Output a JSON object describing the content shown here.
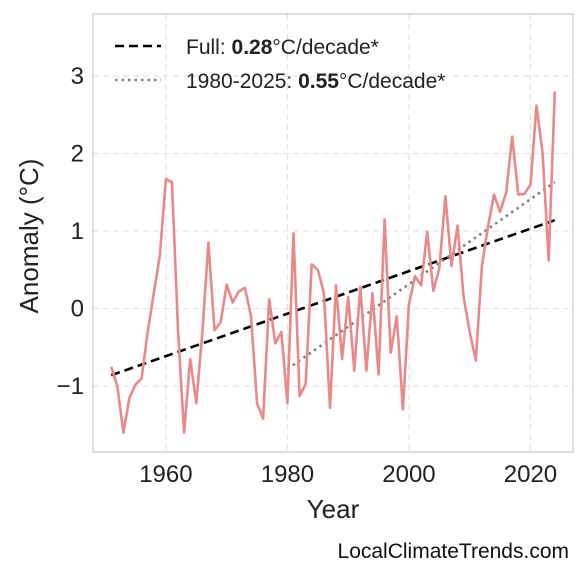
{
  "credit": "LocalClimateTrends.com",
  "chart_data": {
    "type": "line",
    "xlabel": "Year",
    "ylabel": "Anomaly (°C)",
    "xlim": [
      1948,
      2027
    ],
    "ylim": [
      -1.85,
      3.8
    ],
    "xticks": [
      1960,
      1980,
      2000,
      2020
    ],
    "yticks": [
      -1,
      0,
      1,
      2,
      3
    ],
    "ytick_labels": [
      "−1",
      "0",
      "1",
      "2",
      "3"
    ],
    "grid": true,
    "legend_position": "top-left",
    "legend": [
      {
        "label_prefix": "Full: ",
        "value": "0.28",
        "label_suffix": "°C/decade*",
        "style": "dashed",
        "color": "#000000"
      },
      {
        "label_prefix": "1980-2025: ",
        "value": "0.55",
        "label_suffix": "°C/decade*",
        "style": "dotted",
        "color": "#808080"
      }
    ],
    "series": [
      {
        "color": "#e8898b",
        "x": [
          1951,
          1952,
          1953,
          1954,
          1955,
          1956,
          1957,
          1958,
          1959,
          1960,
          1961,
          1962,
          1963,
          1964,
          1965,
          1966,
          1967,
          1968,
          1969,
          1970,
          1971,
          1972,
          1973,
          1974,
          1975,
          1976,
          1977,
          1978,
          1979,
          1980,
          1981,
          1982,
          1983,
          1984,
          1985,
          1986,
          1987,
          1988,
          1989,
          1990,
          1991,
          1992,
          1993,
          1994,
          1995,
          1996,
          1997,
          1998,
          1999,
          2000,
          2001,
          2002,
          2003,
          2004,
          2005,
          2006,
          2007,
          2008,
          2009,
          2010,
          2011,
          2012,
          2013,
          2014,
          2015,
          2016,
          2017,
          2018,
          2019,
          2020,
          2021,
          2022,
          2023,
          2024
        ],
        "y": [
          -0.75,
          -1.0,
          -1.6,
          -1.15,
          -0.98,
          -0.9,
          -0.3,
          0.2,
          0.68,
          1.67,
          1.63,
          -0.3,
          -1.6,
          -0.65,
          -1.22,
          -0.3,
          0.85,
          -0.28,
          -0.18,
          0.31,
          0.08,
          0.22,
          0.27,
          -0.1,
          -1.22,
          -1.42,
          0.12,
          -0.45,
          -0.3,
          -1.22,
          0.97,
          -1.13,
          -0.97,
          0.57,
          0.5,
          0.2,
          -1.28,
          0.3,
          -0.65,
          0.15,
          -0.8,
          0.28,
          -0.8,
          0.2,
          -0.85,
          1.15,
          -0.57,
          -0.1,
          -1.3,
          0.05,
          0.42,
          0.3,
          0.99,
          0.23,
          0.52,
          1.45,
          0.55,
          1.07,
          0.15,
          -0.3,
          -0.67,
          0.55,
          1.05,
          1.47,
          1.25,
          1.5,
          2.22,
          1.47,
          1.48,
          1.6,
          2.62,
          2.0,
          0.62,
          2.8
        ]
      }
    ],
    "trend_lines": [
      {
        "name": "Full",
        "style": "dashed",
        "color": "#000000",
        "x": [
          1951,
          2024
        ],
        "y": [
          -0.86,
          1.14
        ]
      },
      {
        "name": "1980-2025",
        "style": "dotted",
        "color": "#808080",
        "x": [
          1980,
          2024
        ],
        "y": [
          -0.78,
          1.63
        ]
      }
    ]
  }
}
